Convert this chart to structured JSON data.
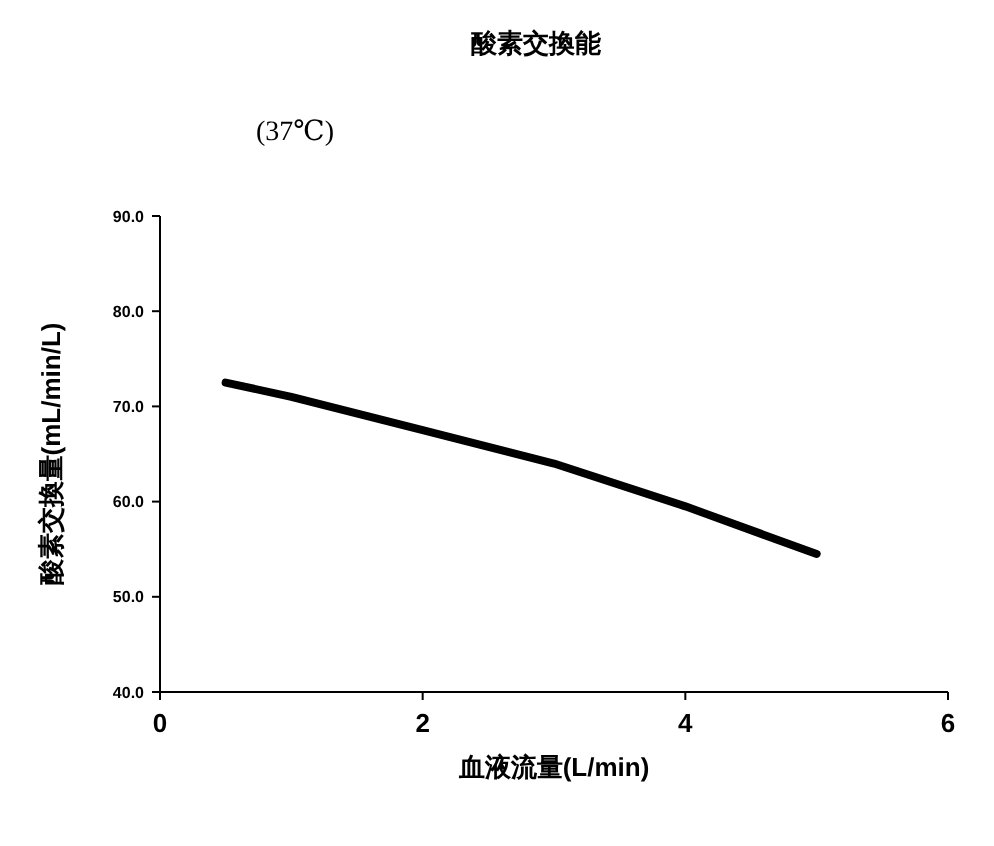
{
  "chart_data": {
    "type": "line",
    "title": "酸素交換能",
    "subtitle": "(37℃)",
    "xlabel": "血液流量(L/min)",
    "ylabel": "酸素交換量(mL/min/L)",
    "x": [
      0.5,
      1,
      2,
      3,
      4,
      5
    ],
    "series": [
      {
        "color": "#000000",
        "values": [
          72.5,
          71,
          67.5,
          64,
          59.5,
          54.5
        ]
      }
    ],
    "xlim": [
      0,
      6
    ],
    "xticks": [
      0,
      2,
      4,
      6
    ],
    "ylim": [
      40,
      90
    ],
    "yticks": [
      {
        "value": 40,
        "label": "40.0"
      },
      {
        "value": 50,
        "label": "50.0"
      },
      {
        "value": 60,
        "label": "60.0"
      },
      {
        "value": 70,
        "label": "70.0"
      },
      {
        "value": 80,
        "label": "80.0"
      },
      {
        "value": 90,
        "label": "90.0"
      }
    ],
    "grid": false,
    "marker": "none",
    "line_style": "solid"
  }
}
